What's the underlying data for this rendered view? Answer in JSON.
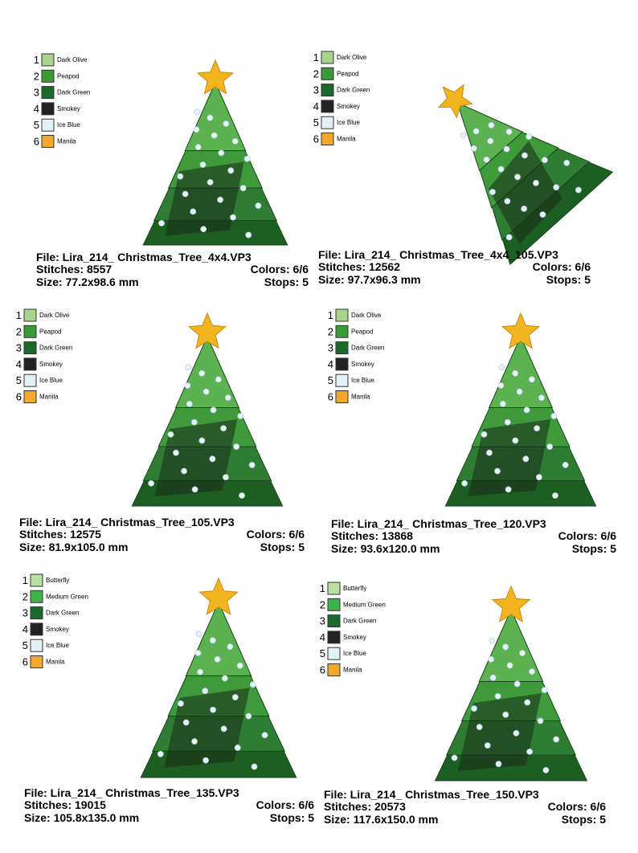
{
  "panels": [
    {
      "threads": [
        {
          "num": 1,
          "name": "Dark Olive",
          "color": "#a8d48c"
        },
        {
          "num": 2,
          "name": "Peapod",
          "color": "#3b9a35"
        },
        {
          "num": 3,
          "name": "Dark Green",
          "color": "#1b6a2b"
        },
        {
          "num": 4,
          "name": "Smokey",
          "color": "#222222"
        },
        {
          "num": 5,
          "name": "Ice Blue",
          "color": "#e2f1f6"
        },
        {
          "num": 6,
          "name": "Manila",
          "color": "#f4a82a"
        }
      ],
      "file": "File: Lira_214_ Christmas_Tree_4x4.VP3",
      "stitches": "Stitches: 8557",
      "colors": "Colors: 6/6",
      "size": "Size: 77.2x98.6 mm",
      "stops": "Stops: 5"
    },
    {
      "threads": [
        {
          "num": 1,
          "name": "Dark Olive",
          "color": "#a8d48c"
        },
        {
          "num": 2,
          "name": "Peapod",
          "color": "#3b9a35"
        },
        {
          "num": 3,
          "name": "Dark Green",
          "color": "#1b6a2b"
        },
        {
          "num": 4,
          "name": "Smokey",
          "color": "#222222"
        },
        {
          "num": 5,
          "name": "Ice Blue",
          "color": "#e2f1f6"
        },
        {
          "num": 6,
          "name": "Manila",
          "color": "#f4a82a"
        }
      ],
      "file": "File: Lira_214_ Christmas_Tree_4x4_105.VP3",
      "stitches": "Stitches: 12562",
      "colors": "Colors: 6/6",
      "size": "Size: 97.7x96.3 mm",
      "stops": "Stops: 5"
    },
    {
      "threads": [
        {
          "num": 1,
          "name": "Dark Olive",
          "color": "#a8d48c"
        },
        {
          "num": 2,
          "name": "Peapod",
          "color": "#3b9a35"
        },
        {
          "num": 3,
          "name": "Dark Green",
          "color": "#1b6a2b"
        },
        {
          "num": 4,
          "name": "Smokey",
          "color": "#222222"
        },
        {
          "num": 5,
          "name": "Ice Blue",
          "color": "#e2f1f6"
        },
        {
          "num": 6,
          "name": "Manila",
          "color": "#f4a82a"
        }
      ],
      "file": "File: Lira_214_ Christmas_Tree_105.VP3",
      "stitches": "Stitches: 12575",
      "colors": "Colors: 6/6",
      "size": "Size: 81.9x105.0 mm",
      "stops": "Stops: 5"
    },
    {
      "threads": [
        {
          "num": 1,
          "name": "Dark Olive",
          "color": "#a8d48c"
        },
        {
          "num": 2,
          "name": "Peapod",
          "color": "#3b9a35"
        },
        {
          "num": 3,
          "name": "Dark Green",
          "color": "#1b6a2b"
        },
        {
          "num": 4,
          "name": "Smokey",
          "color": "#222222"
        },
        {
          "num": 5,
          "name": "Ice Blue",
          "color": "#e2f1f6"
        },
        {
          "num": 6,
          "name": "Manila",
          "color": "#f4a82a"
        }
      ],
      "file": "File: Lira_214_ Christmas_Tree_120.VP3",
      "stitches": "Stitches: 13868",
      "colors": "Colors: 6/6",
      "size": "Size: 93.6x120.0 mm",
      "stops": "Stops: 5"
    },
    {
      "threads": [
        {
          "num": 1,
          "name": "Butterfly",
          "color": "#b8e0a0"
        },
        {
          "num": 2,
          "name": "Medium Green",
          "color": "#3cb44a"
        },
        {
          "num": 3,
          "name": "Dark Green",
          "color": "#1b6a2b"
        },
        {
          "num": 4,
          "name": "Smokey",
          "color": "#222222"
        },
        {
          "num": 5,
          "name": "Ice Blue",
          "color": "#e2f1f6"
        },
        {
          "num": 6,
          "name": "Manila",
          "color": "#f4a82a"
        }
      ],
      "file": "File: Lira_214_ Christmas_Tree_135.VP3",
      "stitches": "Stitches: 19015",
      "colors": "Colors: 6/6",
      "size": "Size: 105.8x135.0 mm",
      "stops": "Stops: 5"
    },
    {
      "threads": [
        {
          "num": 1,
          "name": "Butterfly",
          "color": "#b8e0a0"
        },
        {
          "num": 2,
          "name": "Medium Green",
          "color": "#3cb44a"
        },
        {
          "num": 3,
          "name": "Dark Green",
          "color": "#1b6a2b"
        },
        {
          "num": 4,
          "name": "Smokey",
          "color": "#222222"
        },
        {
          "num": 5,
          "name": "Ice Blue",
          "color": "#e2f1f6"
        },
        {
          "num": 6,
          "name": "Manila",
          "color": "#f4a82a"
        }
      ],
      "file": "File: Lira_214_ Christmas_Tree_150.VP3",
      "stitches": "Stitches: 20573",
      "colors": "Colors: 6/6",
      "size": "Size: 117.6x150.0 mm",
      "stops": "Stops: 5"
    }
  ]
}
